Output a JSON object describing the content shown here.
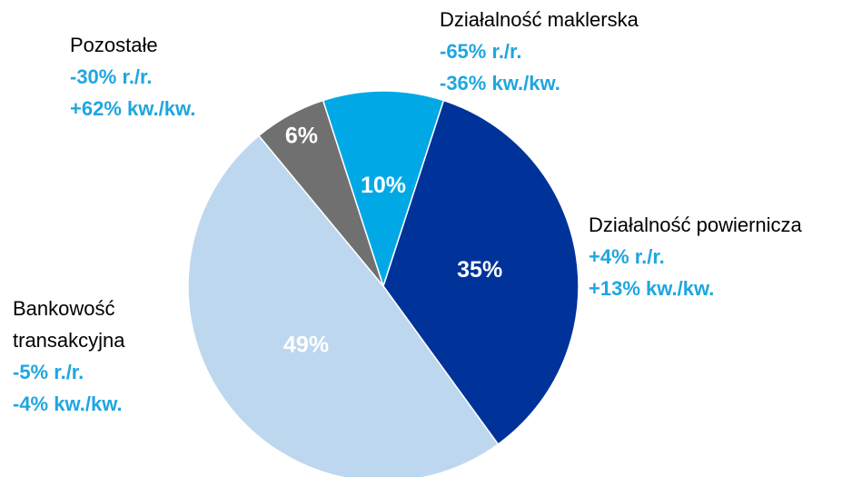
{
  "chart_data": {
    "type": "pie",
    "categories": [
      "Działalność maklerska",
      "Działalność powiernicza",
      "Bankowość transakcyjna",
      "Pozostałe"
    ],
    "values": [
      10,
      35,
      49,
      6
    ],
    "value_labels": [
      "10%",
      "35%",
      "49%",
      "6%"
    ],
    "colors": [
      "#00a9e6",
      "#003399",
      "#bdd7ee",
      "#707070"
    ],
    "yoy": [
      "-65% r./r.",
      "+4% r./r.",
      "-5% r./r.",
      "-30% r./r."
    ],
    "qoq": [
      "-36% kw./kw.",
      "+13% kw./kw.",
      "-4% kw./kw.",
      "+62% kw./kw."
    ]
  }
}
